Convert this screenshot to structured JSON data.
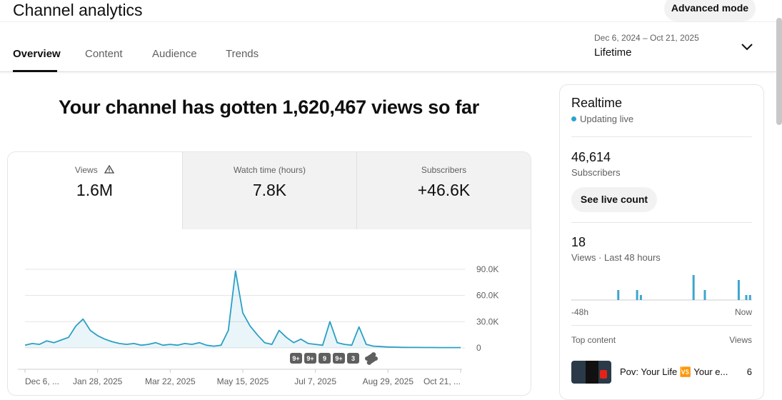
{
  "header": {
    "title": "Channel analytics",
    "advanced_mode": "Advanced mode"
  },
  "tabs": [
    "Overview",
    "Content",
    "Audience",
    "Trends"
  ],
  "date_range": {
    "range": "Dec 6, 2024 – Oct 21, 2025",
    "period": "Lifetime"
  },
  "headline": "Your channel has gotten 1,620,467 views so far",
  "metrics": [
    {
      "label": "Views",
      "value": "1.6M"
    },
    {
      "label": "Watch time (hours)",
      "value": "7.8K"
    },
    {
      "label": "Subscribers",
      "value": "+46.6K"
    }
  ],
  "chart_data": [
    {
      "type": "line",
      "color": "#2b9fc4",
      "categories": [
        "Dec 6, ...",
        null,
        null,
        null,
        null,
        null,
        null,
        null,
        null,
        null,
        "Jan 28, 2025",
        null,
        null,
        null,
        null,
        null,
        null,
        null,
        null,
        null,
        "Mar 22, 2025",
        null,
        null,
        null,
        null,
        null,
        null,
        null,
        null,
        null,
        "May 15, 2025",
        null,
        null,
        null,
        null,
        null,
        null,
        null,
        null,
        null,
        "Jul 7, 2025",
        null,
        null,
        null,
        null,
        null,
        null,
        null,
        null,
        null,
        "Aug 29, 2025",
        null,
        null,
        null,
        null,
        null,
        null,
        null,
        null,
        null,
        "Oct 21, ..."
      ],
      "values": [
        3000,
        5000,
        4000,
        8000,
        6000,
        9000,
        12000,
        25000,
        33000,
        20000,
        14000,
        10000,
        7000,
        5000,
        4000,
        5000,
        3000,
        4000,
        6000,
        3000,
        4000,
        3000,
        5000,
        4000,
        6000,
        3000,
        2000,
        3000,
        20000,
        88000,
        40000,
        25000,
        15000,
        6000,
        4000,
        20000,
        12000,
        6000,
        10000,
        5000,
        4000,
        3000,
        30000,
        6000,
        4000,
        3000,
        24000,
        4000,
        2000,
        1500,
        1000,
        800,
        600,
        500,
        500,
        400,
        400,
        300,
        300,
        300,
        300
      ],
      "ylim": [
        0,
        90000
      ],
      "yticks": [
        {
          "value": 0,
          "label": "0"
        },
        {
          "value": 30000,
          "label": "30.0K"
        },
        {
          "value": 60000,
          "label": "60.0K"
        },
        {
          "value": 90000,
          "label": "90.0K"
        }
      ],
      "grid": true,
      "annotations": [
        "9+",
        "9+",
        "9",
        "9+",
        "3"
      ]
    },
    {
      "type": "bar",
      "color": "#3ea6cc",
      "categories": [
        "-48h",
        null,
        null,
        null,
        null,
        null,
        null,
        null,
        null,
        null,
        null,
        null,
        null,
        null,
        null,
        null,
        null,
        null,
        null,
        null,
        null,
        null,
        null,
        null,
        null,
        null,
        null,
        null,
        null,
        null,
        null,
        null,
        null,
        null,
        null,
        null,
        null,
        null,
        null,
        null,
        null,
        null,
        null,
        null,
        null,
        null,
        null,
        "Now"
      ],
      "values": [
        0,
        0,
        0,
        0,
        0,
        0,
        0,
        0,
        0,
        0,
        0,
        0,
        2,
        0,
        0,
        0,
        0,
        2,
        1,
        0,
        0,
        0,
        0,
        0,
        0,
        0,
        0,
        0,
        0,
        0,
        0,
        0,
        5,
        0,
        0,
        2,
        0,
        0,
        0,
        0,
        0,
        0,
        0,
        0,
        4,
        0,
        1,
        1
      ],
      "ylim": [
        0,
        5
      ]
    }
  ],
  "realtime": {
    "title": "Realtime",
    "status": "Updating live",
    "subscribers": {
      "value": "46,614",
      "label": "Subscribers"
    },
    "button": "See live count",
    "views": {
      "value": "18",
      "label": "Views · Last 48 hours"
    },
    "top_content": {
      "header": "Top content",
      "views_header": "Views",
      "items": [
        {
          "title": "Pov: Your Life 🆚 Your e...",
          "views": "6"
        }
      ]
    }
  }
}
